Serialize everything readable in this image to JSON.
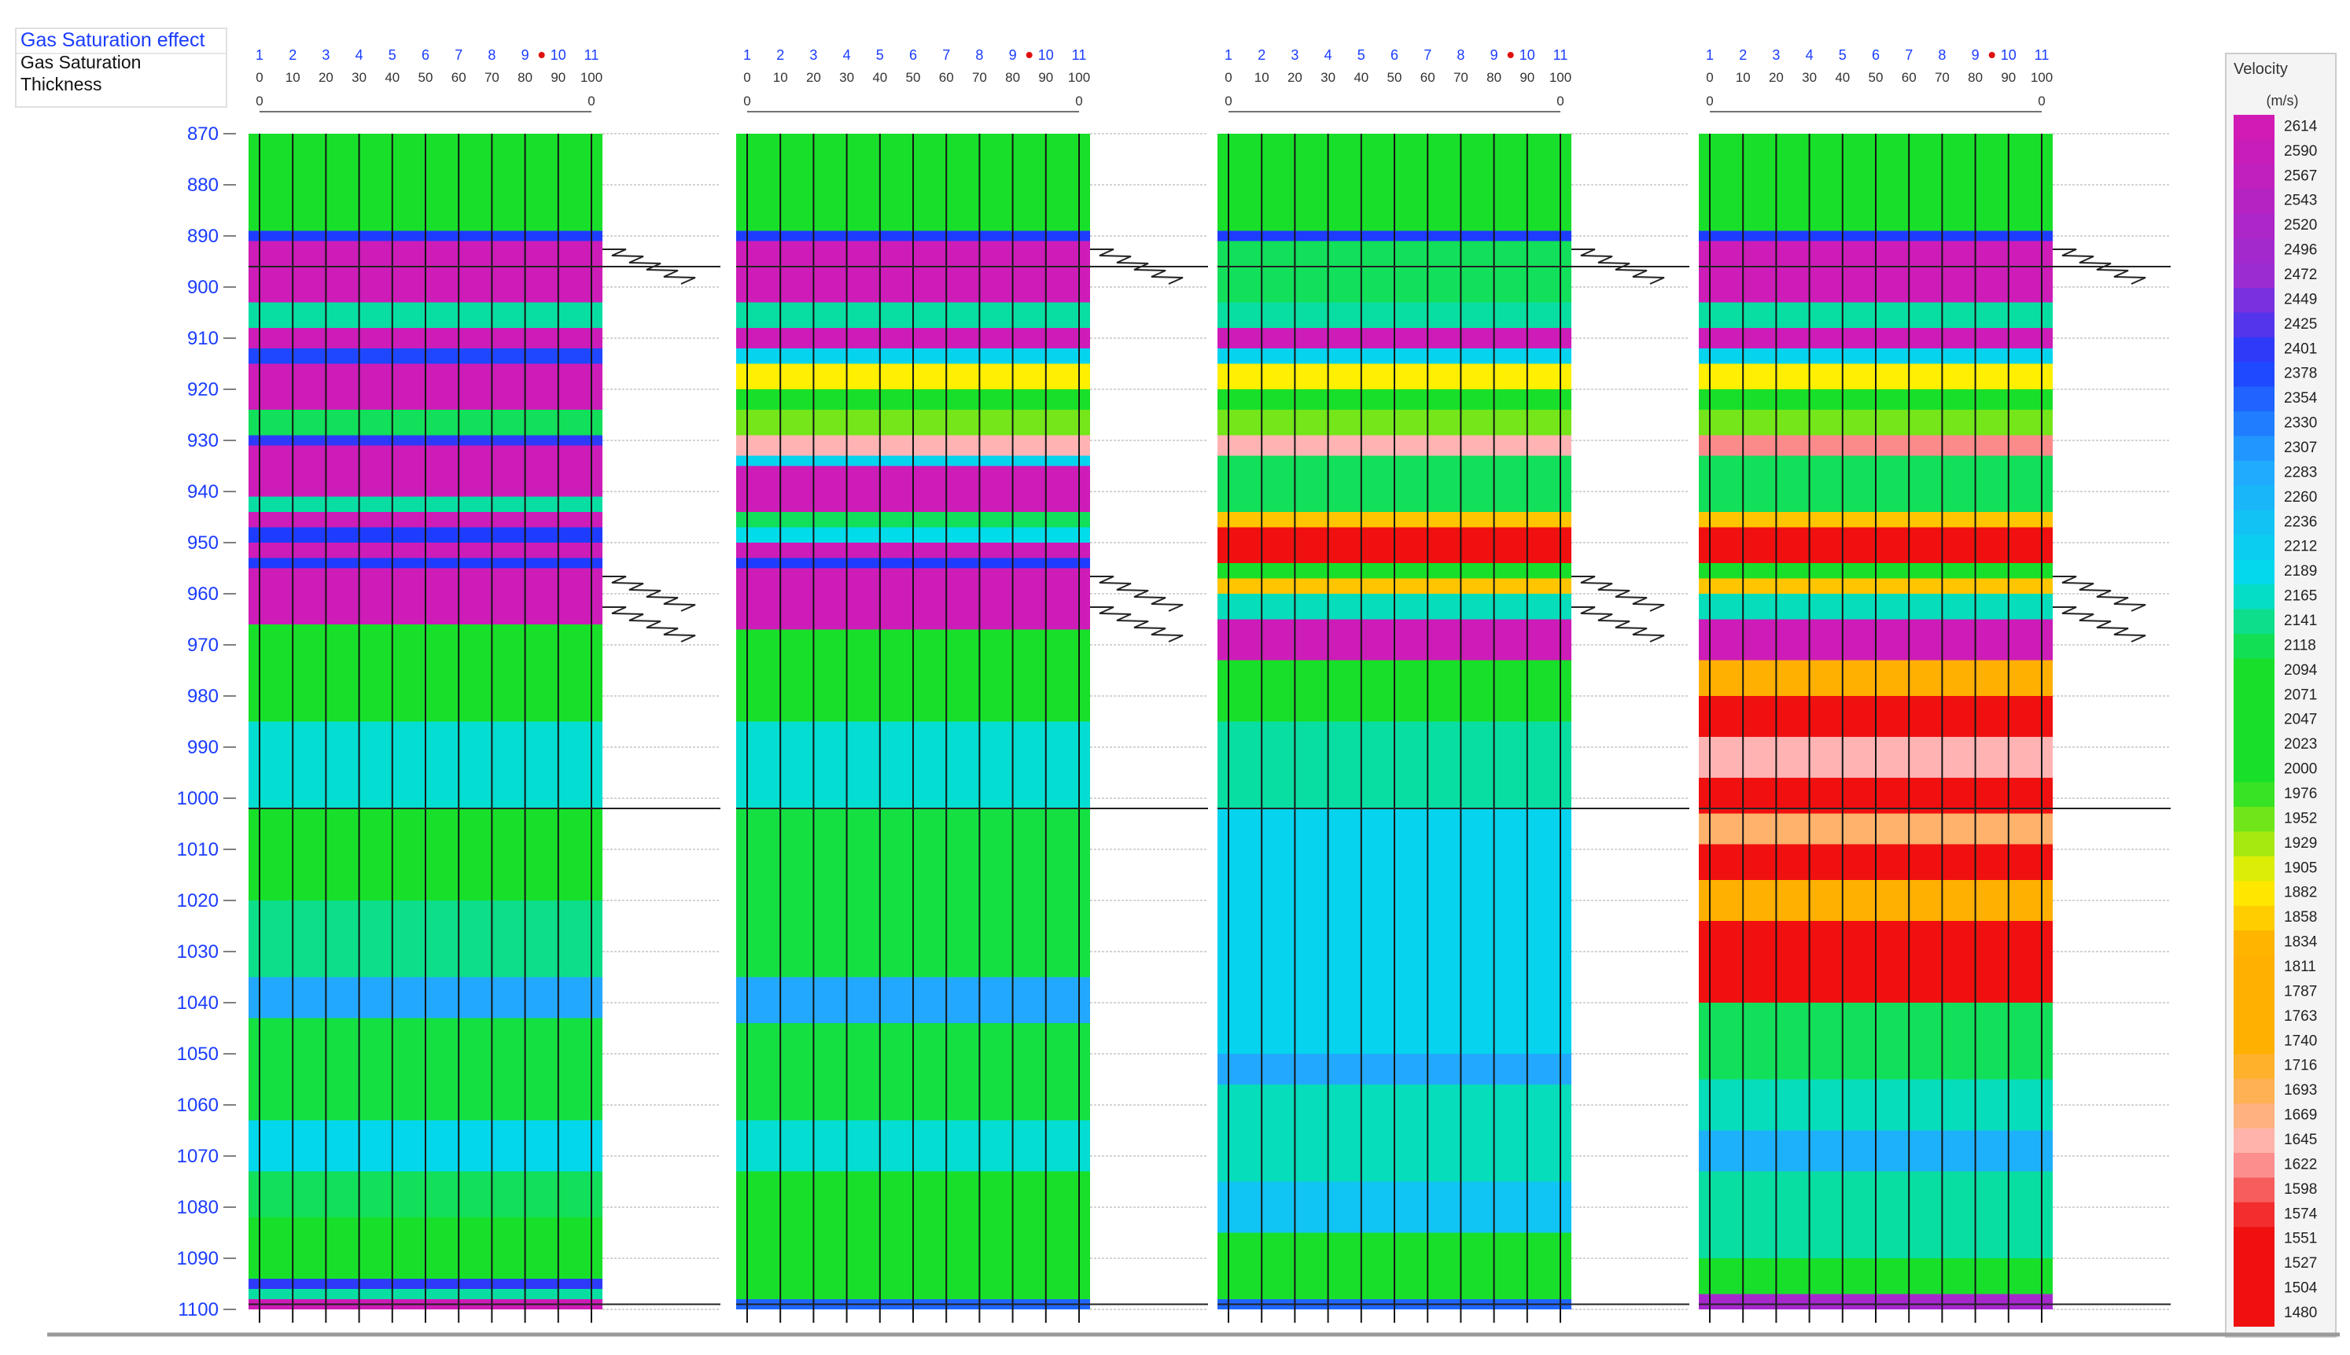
{
  "header": {
    "title": "Gas Saturation  effect",
    "line1": "Gas Saturation",
    "line2": "Thickness"
  },
  "legend": {
    "title": "Velocity",
    "unit": "(m/s)",
    "labels": [
      "2614",
      "2590",
      "2567",
      "2543",
      "2520",
      "2496",
      "2472",
      "2449",
      "2425",
      "2401",
      "2378",
      "2354",
      "2330",
      "2307",
      "2283",
      "2260",
      "2236",
      "2212",
      "2189",
      "2165",
      "2141",
      "2118",
      "2094",
      "2071",
      "2047",
      "2023",
      "2000",
      "1976",
      "1952",
      "1929",
      "1905",
      "1882",
      "1858",
      "1834",
      "1811",
      "1787",
      "1763",
      "1740",
      "1716",
      "1693",
      "1669",
      "1645",
      "1622",
      "1598",
      "1574",
      "1551",
      "1527",
      "1504",
      "1480"
    ]
  },
  "colors": {
    "magenta": "#d21ab4",
    "blue": "#1e3cff",
    "cyan": "#00dcea",
    "sky": "#23a8ff",
    "green": "#18e02a",
    "yellow": "#ffef00",
    "orange": "#ffb000",
    "pink": "#ffb3b3",
    "red": "#f01010",
    "axisBlue": "#1a3cff"
  },
  "chart_data": {
    "type": "heatmap",
    "ylim": [
      1100,
      870
    ],
    "depth_ticks": [
      "870",
      "880",
      "890",
      "900",
      "910",
      "920",
      "930",
      "940",
      "950",
      "960",
      "970",
      "980",
      "990",
      "1000",
      "1010",
      "1020",
      "1030",
      "1040",
      "1050",
      "1060",
      "1070",
      "1080",
      "1090",
      "1100"
    ],
    "trace_numbers": [
      "1",
      "2",
      "3",
      "4",
      "5",
      "6",
      "7",
      "8",
      "9",
      "10",
      "11"
    ],
    "trace_scale": [
      "0",
      "10",
      "20",
      "30",
      "40",
      "50",
      "60",
      "70",
      "80",
      "90",
      "100"
    ],
    "zero_label": "0",
    "panels": [
      {
        "layers": [
          {
            "from": 870,
            "to": 889,
            "v": 2100
          },
          {
            "from": 889,
            "to": 891,
            "v": 2390
          },
          {
            "from": 891,
            "to": 903,
            "v": 2600
          },
          {
            "from": 903,
            "to": 908,
            "v": 2150
          },
          {
            "from": 908,
            "to": 912,
            "v": 2600
          },
          {
            "from": 912,
            "to": 915,
            "v": 2380
          },
          {
            "from": 915,
            "to": 924,
            "v": 2600
          },
          {
            "from": 924,
            "to": 929,
            "v": 2120
          },
          {
            "from": 929,
            "to": 931,
            "v": 2400
          },
          {
            "from": 931,
            "to": 941,
            "v": 2600
          },
          {
            "from": 941,
            "to": 944,
            "v": 2150
          },
          {
            "from": 944,
            "to": 947,
            "v": 2600
          },
          {
            "from": 947,
            "to": 950,
            "v": 2390
          },
          {
            "from": 950,
            "to": 953,
            "v": 2600
          },
          {
            "from": 953,
            "to": 955,
            "v": 2390
          },
          {
            "from": 955,
            "to": 966,
            "v": 2600
          },
          {
            "from": 966,
            "to": 985,
            "v": 2100
          },
          {
            "from": 985,
            "to": 1002,
            "v": 2170
          },
          {
            "from": 1002,
            "to": 1020,
            "v": 2090
          },
          {
            "from": 1020,
            "to": 1035,
            "v": 2140
          },
          {
            "from": 1035,
            "to": 1043,
            "v": 2290
          },
          {
            "from": 1043,
            "to": 1063,
            "v": 2110
          },
          {
            "from": 1063,
            "to": 1073,
            "v": 2190
          },
          {
            "from": 1073,
            "to": 1082,
            "v": 2120
          },
          {
            "from": 1082,
            "to": 1094,
            "v": 2040
          },
          {
            "from": 1094,
            "to": 1096,
            "v": 2400
          },
          {
            "from": 1096,
            "to": 1098,
            "v": 2150
          },
          {
            "from": 1098,
            "to": 1100,
            "v": 2600
          }
        ]
      },
      {
        "layers": [
          {
            "from": 870,
            "to": 889,
            "v": 2100
          },
          {
            "from": 889,
            "to": 891,
            "v": 2390
          },
          {
            "from": 891,
            "to": 903,
            "v": 2600
          },
          {
            "from": 903,
            "to": 908,
            "v": 2150
          },
          {
            "from": 908,
            "to": 912,
            "v": 2600
          },
          {
            "from": 912,
            "to": 915,
            "v": 2200
          },
          {
            "from": 915,
            "to": 920,
            "v": 1890
          },
          {
            "from": 920,
            "to": 924,
            "v": 2040
          },
          {
            "from": 924,
            "to": 929,
            "v": 1950
          },
          {
            "from": 929,
            "to": 933,
            "v": 1640
          },
          {
            "from": 933,
            "to": 935,
            "v": 2200
          },
          {
            "from": 935,
            "to": 944,
            "v": 2600
          },
          {
            "from": 944,
            "to": 947,
            "v": 2120
          },
          {
            "from": 947,
            "to": 950,
            "v": 2180
          },
          {
            "from": 950,
            "to": 953,
            "v": 2600
          },
          {
            "from": 953,
            "to": 955,
            "v": 2390
          },
          {
            "from": 955,
            "to": 967,
            "v": 2600
          },
          {
            "from": 967,
            "to": 985,
            "v": 2100
          },
          {
            "from": 985,
            "to": 1002,
            "v": 2170
          },
          {
            "from": 1002,
            "to": 1035,
            "v": 2110
          },
          {
            "from": 1035,
            "to": 1044,
            "v": 2290
          },
          {
            "from": 1044,
            "to": 1063,
            "v": 2110
          },
          {
            "from": 1063,
            "to": 1073,
            "v": 2170
          },
          {
            "from": 1073,
            "to": 1098,
            "v": 2060
          },
          {
            "from": 1098,
            "to": 1100,
            "v": 2350
          }
        ]
      },
      {
        "layers": [
          {
            "from": 870,
            "to": 889,
            "v": 2100
          },
          {
            "from": 889,
            "to": 891,
            "v": 2390
          },
          {
            "from": 891,
            "to": 903,
            "v": 2120
          },
          {
            "from": 903,
            "to": 908,
            "v": 2150
          },
          {
            "from": 908,
            "to": 912,
            "v": 2600
          },
          {
            "from": 912,
            "to": 915,
            "v": 2200
          },
          {
            "from": 915,
            "to": 920,
            "v": 1890
          },
          {
            "from": 920,
            "to": 924,
            "v": 2060
          },
          {
            "from": 924,
            "to": 929,
            "v": 1950
          },
          {
            "from": 929,
            "to": 933,
            "v": 1640
          },
          {
            "from": 933,
            "to": 944,
            "v": 2120
          },
          {
            "from": 944,
            "to": 947,
            "v": 1850
          },
          {
            "from": 947,
            "to": 954,
            "v": 1560
          },
          {
            "from": 954,
            "to": 957,
            "v": 2100
          },
          {
            "from": 957,
            "to": 960,
            "v": 1850
          },
          {
            "from": 960,
            "to": 965,
            "v": 2160
          },
          {
            "from": 965,
            "to": 973,
            "v": 2600
          },
          {
            "from": 973,
            "to": 985,
            "v": 2100
          },
          {
            "from": 985,
            "to": 1002,
            "v": 2150
          },
          {
            "from": 1002,
            "to": 1050,
            "v": 2200
          },
          {
            "from": 1050,
            "to": 1056,
            "v": 2290
          },
          {
            "from": 1056,
            "to": 1075,
            "v": 2160
          },
          {
            "from": 1075,
            "to": 1085,
            "v": 2230
          },
          {
            "from": 1085,
            "to": 1098,
            "v": 2090
          },
          {
            "from": 1098,
            "to": 1100,
            "v": 2350
          }
        ]
      },
      {
        "layers": [
          {
            "from": 870,
            "to": 889,
            "v": 2100
          },
          {
            "from": 889,
            "to": 891,
            "v": 2390
          },
          {
            "from": 891,
            "to": 903,
            "v": 2600
          },
          {
            "from": 903,
            "to": 908,
            "v": 2150
          },
          {
            "from": 908,
            "to": 912,
            "v": 2600
          },
          {
            "from": 912,
            "to": 915,
            "v": 2200
          },
          {
            "from": 915,
            "to": 920,
            "v": 1890
          },
          {
            "from": 920,
            "to": 924,
            "v": 2060
          },
          {
            "from": 924,
            "to": 929,
            "v": 1950
          },
          {
            "from": 929,
            "to": 933,
            "v": 1620
          },
          {
            "from": 933,
            "to": 944,
            "v": 2120
          },
          {
            "from": 944,
            "to": 947,
            "v": 1850
          },
          {
            "from": 947,
            "to": 954,
            "v": 1560
          },
          {
            "from": 954,
            "to": 957,
            "v": 2100
          },
          {
            "from": 957,
            "to": 960,
            "v": 1850
          },
          {
            "from": 960,
            "to": 965,
            "v": 2160
          },
          {
            "from": 965,
            "to": 973,
            "v": 2600
          },
          {
            "from": 973,
            "to": 980,
            "v": 1800
          },
          {
            "from": 980,
            "to": 988,
            "v": 1540
          },
          {
            "from": 988,
            "to": 996,
            "v": 1640
          },
          {
            "from": 996,
            "to": 1003,
            "v": 1560
          },
          {
            "from": 1003,
            "to": 1009,
            "v": 1680
          },
          {
            "from": 1009,
            "to": 1016,
            "v": 1540
          },
          {
            "from": 1016,
            "to": 1024,
            "v": 1780
          },
          {
            "from": 1024,
            "to": 1040,
            "v": 1540
          },
          {
            "from": 1040,
            "to": 1055,
            "v": 2120
          },
          {
            "from": 1055,
            "to": 1065,
            "v": 2160
          },
          {
            "from": 1065,
            "to": 1073,
            "v": 2270
          },
          {
            "from": 1073,
            "to": 1090,
            "v": 2150
          },
          {
            "from": 1090,
            "to": 1097,
            "v": 2100
          },
          {
            "from": 1097,
            "to": 1100,
            "v": 2500
          }
        ]
      }
    ],
    "saturation_depths": [
      896,
      960,
      966
    ]
  }
}
